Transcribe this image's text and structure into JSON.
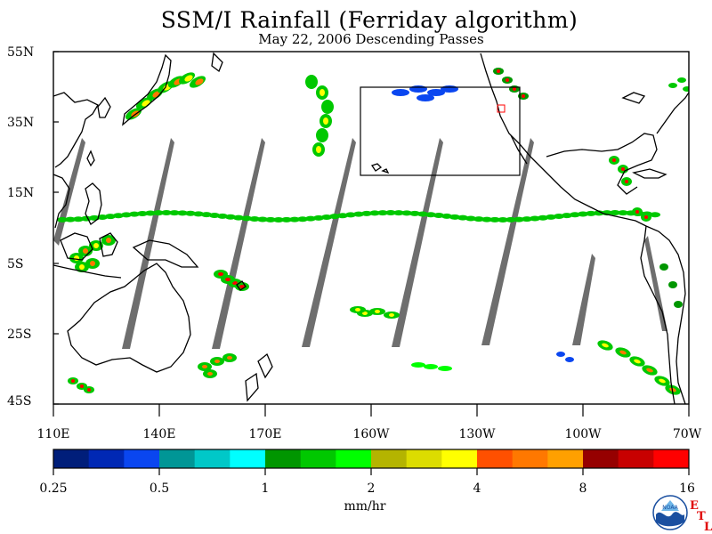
{
  "title": "SSM/I Rainfall (Ferriday algorithm)",
  "subtitle": "May 22, 2006  Descending Passes",
  "map": {
    "lat_labels": [
      "55N",
      "35N",
      "15N",
      "5S",
      "25S",
      "45S"
    ],
    "lon_labels": [
      "110E",
      "140E",
      "170E",
      "160W",
      "130W",
      "100W",
      "70W"
    ],
    "colors": {
      "no_data_swath": "#6e6e6e",
      "coastline": "#000000",
      "background": "#ffffff"
    }
  },
  "colorbar": {
    "colors": [
      "#001e7a",
      "#0028b4",
      "#0a46f0",
      "#009696",
      "#00c8c8",
      "#00ffff",
      "#009600",
      "#00c800",
      "#00ff00",
      "#b4b400",
      "#dcdc00",
      "#ffff00",
      "#ff5000",
      "#ff7800",
      "#ffa000",
      "#960000",
      "#c80000",
      "#ff0000"
    ],
    "tick_labels": [
      "0.25",
      "0.5",
      "1",
      "2",
      "4",
      "8",
      "16"
    ],
    "units": "mm/hr"
  },
  "logo": {
    "name": "NOAA",
    "etl_letters": [
      "E",
      "T",
      "L"
    ]
  }
}
